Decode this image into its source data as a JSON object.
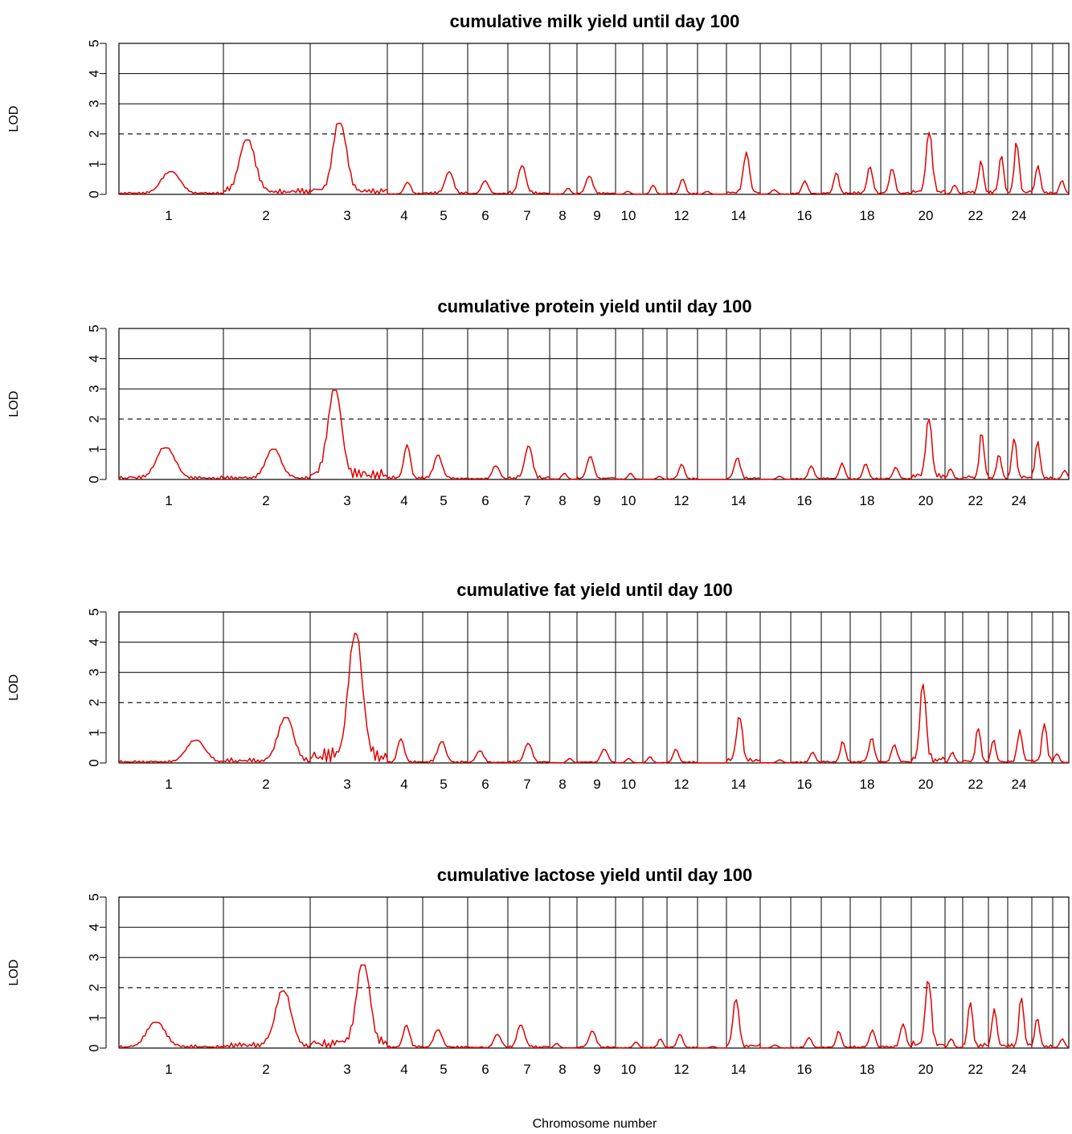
{
  "chart_data": {
    "type": "line",
    "xlabel": "Chromosome number",
    "ylabel": "LOD",
    "ylim": [
      0,
      5
    ],
    "yticks": [
      0,
      1,
      2,
      3,
      4,
      5
    ],
    "threshold": 2,
    "grid": true,
    "line_color": "#e00000",
    "chromosome_tick_labels": [
      "1",
      "2",
      "3",
      "4",
      "5",
      "6",
      "7",
      "8",
      "9",
      "10",
      "12",
      "14",
      "16",
      "18",
      "20",
      "22",
      "24"
    ],
    "chromosomes": [
      "1",
      "2",
      "3",
      "4",
      "5",
      "6",
      "7",
      "8",
      "9",
      "10",
      "11",
      "12",
      "13",
      "14",
      "15",
      "16",
      "17",
      "18",
      "19",
      "20",
      "21",
      "22",
      "23",
      "24",
      "25",
      "26"
    ],
    "panels": [
      {
        "title": "cumulative milk yield until day 100",
        "peaks": [
          {
            "chromosome": "1",
            "lod": 0.75
          },
          {
            "chromosome": "2",
            "lod": 1.8
          },
          {
            "chromosome": "3",
            "lod": 2.35
          },
          {
            "chromosome": "4",
            "lod": 0.4
          },
          {
            "chromosome": "5",
            "lod": 0.75
          },
          {
            "chromosome": "6",
            "lod": 0.45
          },
          {
            "chromosome": "7",
            "lod": 0.95
          },
          {
            "chromosome": "8",
            "lod": 0.2
          },
          {
            "chromosome": "9",
            "lod": 0.6
          },
          {
            "chromosome": "10",
            "lod": 0.1
          },
          {
            "chromosome": "11",
            "lod": 0.3
          },
          {
            "chromosome": "12",
            "lod": 0.5
          },
          {
            "chromosome": "13",
            "lod": 0.1
          },
          {
            "chromosome": "14",
            "lod": 1.4
          },
          {
            "chromosome": "15",
            "lod": 0.15
          },
          {
            "chromosome": "16",
            "lod": 0.45
          },
          {
            "chromosome": "17",
            "lod": 0.7
          },
          {
            "chromosome": "18",
            "lod": 0.9
          },
          {
            "chromosome": "19",
            "lod": 0.85
          },
          {
            "chromosome": "20",
            "lod": 2.05
          },
          {
            "chromosome": "21",
            "lod": 0.3
          },
          {
            "chromosome": "22",
            "lod": 1.1
          },
          {
            "chromosome": "23",
            "lod": 1.25
          },
          {
            "chromosome": "24",
            "lod": 1.7
          },
          {
            "chromosome": "25",
            "lod": 0.95
          },
          {
            "chromosome": "26",
            "lod": 0.45
          }
        ]
      },
      {
        "title": "cumulative protein yield until day 100",
        "peaks": [
          {
            "chromosome": "1",
            "lod": 1.05
          },
          {
            "chromosome": "2",
            "lod": 1.0
          },
          {
            "chromosome": "3",
            "lod": 2.95
          },
          {
            "chromosome": "4",
            "lod": 1.15
          },
          {
            "chromosome": "5",
            "lod": 0.8
          },
          {
            "chromosome": "6",
            "lod": 0.45
          },
          {
            "chromosome": "7",
            "lod": 1.1
          },
          {
            "chromosome": "8",
            "lod": 0.2
          },
          {
            "chromosome": "9",
            "lod": 0.75
          },
          {
            "chromosome": "10",
            "lod": 0.2
          },
          {
            "chromosome": "11",
            "lod": 0.1
          },
          {
            "chromosome": "12",
            "lod": 0.5
          },
          {
            "chromosome": "13",
            "lod": 0.0
          },
          {
            "chromosome": "14",
            "lod": 0.7
          },
          {
            "chromosome": "15",
            "lod": 0.1
          },
          {
            "chromosome": "16",
            "lod": 0.45
          },
          {
            "chromosome": "17",
            "lod": 0.55
          },
          {
            "chromosome": "18",
            "lod": 0.5
          },
          {
            "chromosome": "19",
            "lod": 0.4
          },
          {
            "chromosome": "20",
            "lod": 2.0
          },
          {
            "chromosome": "21",
            "lod": 0.35
          },
          {
            "chromosome": "22",
            "lod": 1.5
          },
          {
            "chromosome": "23",
            "lod": 0.8
          },
          {
            "chromosome": "24",
            "lod": 1.35
          },
          {
            "chromosome": "25",
            "lod": 1.25
          },
          {
            "chromosome": "26",
            "lod": 0.3
          }
        ]
      },
      {
        "title": "cumulative fat yield until day 100",
        "peaks": [
          {
            "chromosome": "1",
            "lod": 0.75
          },
          {
            "chromosome": "2",
            "lod": 1.5
          },
          {
            "chromosome": "3",
            "lod": 4.3
          },
          {
            "chromosome": "4",
            "lod": 0.8
          },
          {
            "chromosome": "5",
            "lod": 0.7
          },
          {
            "chromosome": "6",
            "lod": 0.4
          },
          {
            "chromosome": "7",
            "lod": 0.65
          },
          {
            "chromosome": "8",
            "lod": 0.15
          },
          {
            "chromosome": "9",
            "lod": 0.45
          },
          {
            "chromosome": "10",
            "lod": 0.15
          },
          {
            "chromosome": "11",
            "lod": 0.2
          },
          {
            "chromosome": "12",
            "lod": 0.45
          },
          {
            "chromosome": "13",
            "lod": 0.0
          },
          {
            "chromosome": "14",
            "lod": 1.5
          },
          {
            "chromosome": "15",
            "lod": 0.1
          },
          {
            "chromosome": "16",
            "lod": 0.35
          },
          {
            "chromosome": "17",
            "lod": 0.7
          },
          {
            "chromosome": "18",
            "lod": 0.8
          },
          {
            "chromosome": "19",
            "lod": 0.6
          },
          {
            "chromosome": "20",
            "lod": 2.6
          },
          {
            "chromosome": "21",
            "lod": 0.35
          },
          {
            "chromosome": "22",
            "lod": 1.15
          },
          {
            "chromosome": "23",
            "lod": 0.75
          },
          {
            "chromosome": "24",
            "lod": 1.1
          },
          {
            "chromosome": "25",
            "lod": 1.3
          },
          {
            "chromosome": "26",
            "lod": 0.3
          }
        ]
      },
      {
        "title": "cumulative lactose yield until day 100",
        "peaks": [
          {
            "chromosome": "1",
            "lod": 0.85
          },
          {
            "chromosome": "2",
            "lod": 1.9
          },
          {
            "chromosome": "3",
            "lod": 2.75
          },
          {
            "chromosome": "4",
            "lod": 0.75
          },
          {
            "chromosome": "5",
            "lod": 0.6
          },
          {
            "chromosome": "6",
            "lod": 0.45
          },
          {
            "chromosome": "7",
            "lod": 0.75
          },
          {
            "chromosome": "8",
            "lod": 0.15
          },
          {
            "chromosome": "9",
            "lod": 0.55
          },
          {
            "chromosome": "10",
            "lod": 0.2
          },
          {
            "chromosome": "11",
            "lod": 0.3
          },
          {
            "chromosome": "12",
            "lod": 0.45
          },
          {
            "chromosome": "13",
            "lod": 0.05
          },
          {
            "chromosome": "14",
            "lod": 1.6
          },
          {
            "chromosome": "15",
            "lod": 0.1
          },
          {
            "chromosome": "16",
            "lod": 0.35
          },
          {
            "chromosome": "17",
            "lod": 0.55
          },
          {
            "chromosome": "18",
            "lod": 0.6
          },
          {
            "chromosome": "19",
            "lod": 0.8
          },
          {
            "chromosome": "20",
            "lod": 2.2
          },
          {
            "chromosome": "21",
            "lod": 0.3
          },
          {
            "chromosome": "22",
            "lod": 1.5
          },
          {
            "chromosome": "23",
            "lod": 1.3
          },
          {
            "chromosome": "24",
            "lod": 1.65
          },
          {
            "chromosome": "25",
            "lod": 0.95
          },
          {
            "chromosome": "26",
            "lod": 0.3
          }
        ]
      }
    ]
  }
}
